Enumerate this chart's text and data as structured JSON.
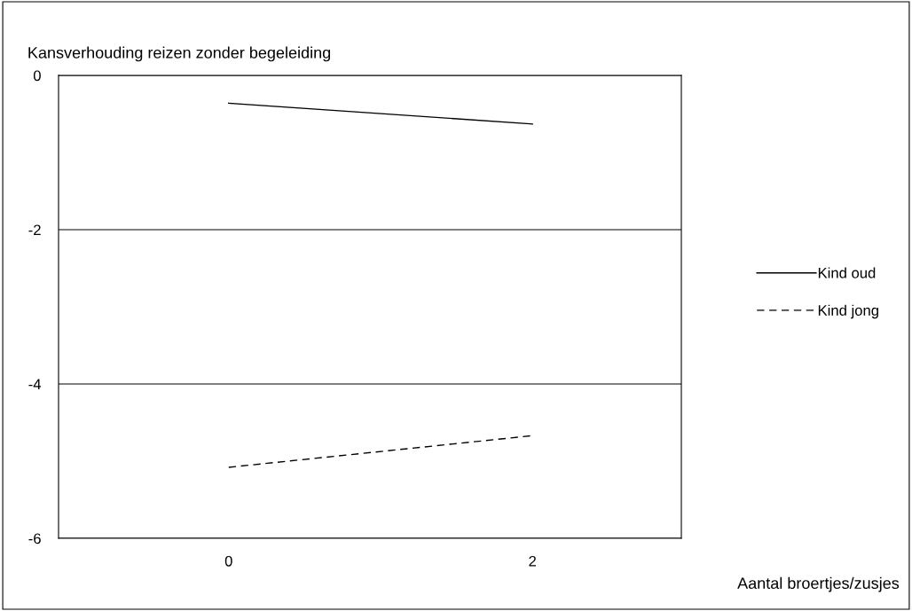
{
  "chart_data": {
    "type": "line",
    "ylabel": "Kansverhouding reizen zonder begeleiding",
    "xlabel": "Aantal broertjes/zusjes",
    "categories": [
      "0",
      "2"
    ],
    "series": [
      {
        "name": "Kind oud",
        "color": "#000000",
        "line_style": "solid",
        "values": [
          -0.36,
          -0.63
        ]
      },
      {
        "name": "Kind jong",
        "color": "#000000",
        "line_style": "dashed",
        "values": [
          -5.08,
          -4.67
        ]
      }
    ],
    "ylim": [
      -6,
      0
    ],
    "yticks": [
      -6,
      -4,
      -2,
      0
    ],
    "grid": "y",
    "legend": "right",
    "marker": "none"
  }
}
